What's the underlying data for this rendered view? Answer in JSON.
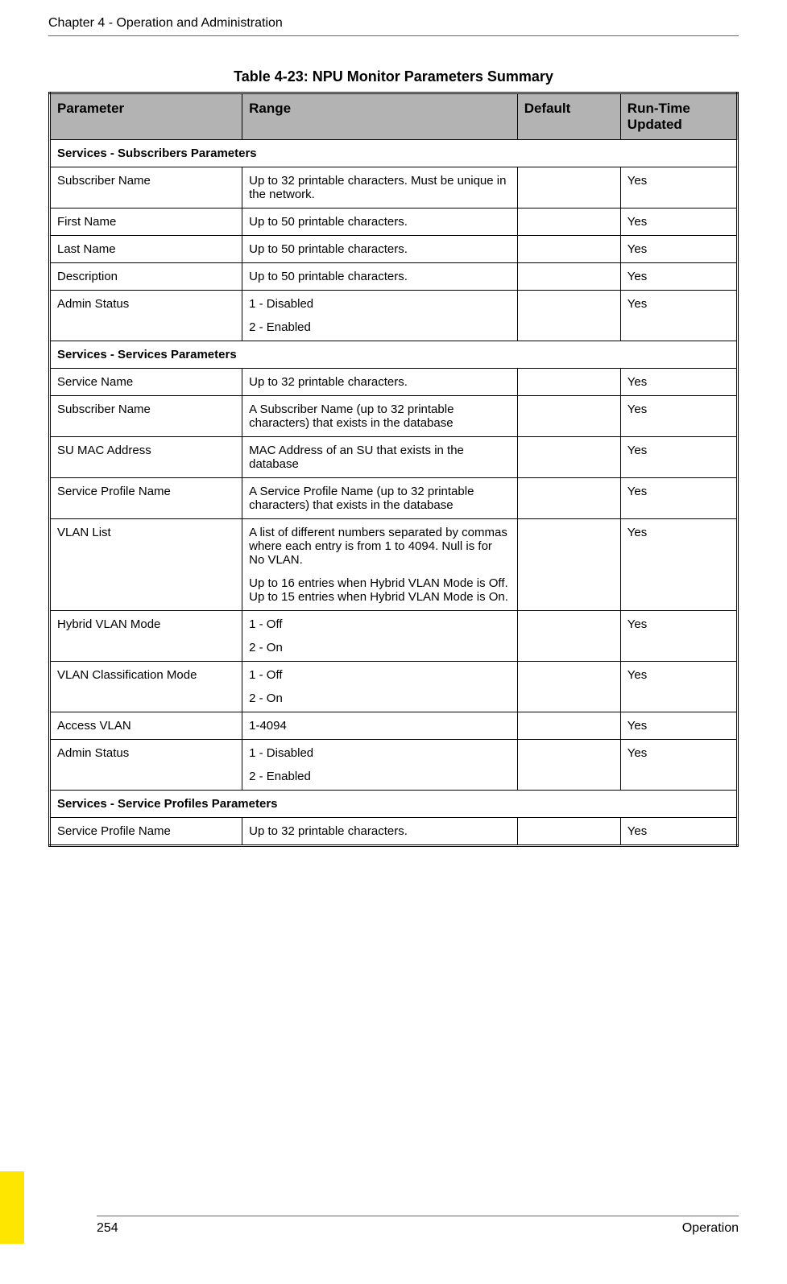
{
  "header": {
    "chapter": "Chapter 4 - Operation and Administration"
  },
  "table": {
    "caption": "Table 4-23: NPU Monitor Parameters Summary",
    "columns": {
      "parameter": "Parameter",
      "range": "Range",
      "default": "Default",
      "runtime": "Run-Time Updated"
    },
    "sections": [
      {
        "title": "Services - Subscribers Parameters",
        "rows": [
          {
            "param": "Subscriber Name",
            "range": [
              "Up to 32 printable characters. Must be unique in the network."
            ],
            "default": "",
            "runtime": "Yes"
          },
          {
            "param": "First Name",
            "range": [
              "Up to 50 printable characters."
            ],
            "default": "",
            "runtime": "Yes"
          },
          {
            "param": "Last Name",
            "range": [
              "Up to 50 printable characters."
            ],
            "default": "",
            "runtime": "Yes"
          },
          {
            "param": "Description",
            "range": [
              "Up to 50 printable characters."
            ],
            "default": "",
            "runtime": "Yes"
          },
          {
            "param": "Admin Status",
            "range": [
              "1 - Disabled",
              "2 - Enabled"
            ],
            "default": "",
            "runtime": "Yes"
          }
        ]
      },
      {
        "title": "Services - Services Parameters",
        "rows": [
          {
            "param": "Service Name",
            "range": [
              "Up to 32 printable characters."
            ],
            "default": "",
            "runtime": "Yes"
          },
          {
            "param": "Subscriber Name",
            "range": [
              "A Subscriber Name (up to 32 printable characters) that exists in the database"
            ],
            "default": "",
            "runtime": "Yes"
          },
          {
            "param": "SU MAC Address",
            "range": [
              "MAC Address of an SU that exists in the database"
            ],
            "default": "",
            "runtime": "Yes"
          },
          {
            "param": "Service Profile Name",
            "range": [
              "A Service Profile Name (up to 32 printable characters) that exists in the database"
            ],
            "default": "",
            "runtime": "Yes"
          },
          {
            "param": "VLAN List",
            "range": [
              "A list of different numbers separated by commas where each entry is from 1 to 4094. Null is for No VLAN.",
              "Up to 16 entries when Hybrid VLAN Mode is Off. Up to 15 entries when Hybrid VLAN Mode is On."
            ],
            "default": "",
            "runtime": "Yes"
          },
          {
            "param": "Hybrid VLAN Mode",
            "range": [
              "1 - Off",
              "2 - On"
            ],
            "default": "",
            "runtime": "Yes"
          },
          {
            "param": "VLAN Classification Mode",
            "range": [
              "1 - Off",
              "2 - On"
            ],
            "default": "",
            "runtime": "Yes"
          },
          {
            "param": "Access VLAN",
            "range": [
              "1-4094"
            ],
            "default": "",
            "runtime": "Yes"
          },
          {
            "param": "Admin Status",
            "range": [
              "1 - Disabled",
              "2 - Enabled"
            ],
            "default": "",
            "runtime": "Yes"
          }
        ]
      },
      {
        "title": "Services - Service Profiles Parameters",
        "rows": [
          {
            "param": "Service Profile Name",
            "range": [
              "Up to 32 printable characters."
            ],
            "default": "",
            "runtime": "Yes"
          }
        ]
      }
    ]
  },
  "footer": {
    "page": "254",
    "section": "Operation"
  },
  "colors": {
    "header_bg": "#b3b3b3",
    "tab_bg": "#ffe600",
    "border": "#000000",
    "text": "#000000"
  }
}
